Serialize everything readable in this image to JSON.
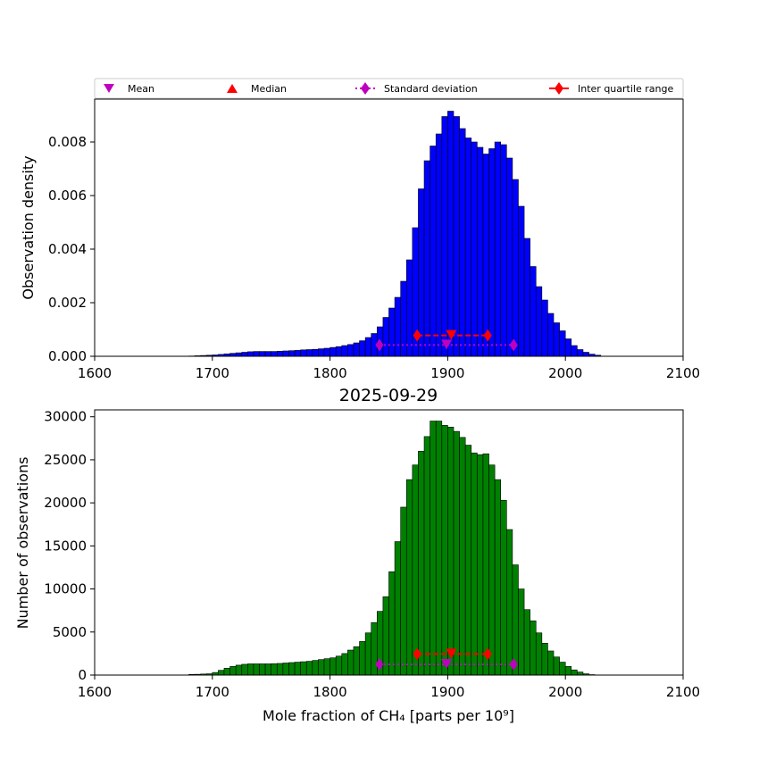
{
  "legend": {
    "mean": "Mean",
    "median": "Median",
    "std": "Standard deviation",
    "iqr": "Inter quartile range"
  },
  "colors": {
    "density_bar": "#0000ff",
    "count_bar": "#008000",
    "mean_marker": "#bf00bf",
    "median_marker": "#ff0000",
    "std_line": "#bf00bf",
    "iqr_line": "#ff0000"
  },
  "chart_data": [
    {
      "type": "bar",
      "ylabel": "Observation density",
      "xlim": [
        1600,
        2100
      ],
      "ylim": [
        0,
        0.0096
      ],
      "xticks": [
        "1600",
        "1700",
        "1800",
        "1900",
        "2000",
        "2100"
      ],
      "yticks": [
        "0.000",
        "0.002",
        "0.004",
        "0.006",
        "0.008"
      ],
      "bin_edges_start": 1680,
      "bin_width": 5,
      "values": [
        1e-05,
        2e-05,
        3e-05,
        4e-05,
        5e-05,
        7e-05,
        9e-05,
        0.00011,
        0.00013,
        0.00015,
        0.00017,
        0.00018,
        0.00018,
        0.00018,
        0.00018,
        0.00019,
        0.0002,
        0.00021,
        0.00022,
        0.00024,
        0.00025,
        0.00026,
        0.00028,
        0.0003,
        0.00033,
        0.00036,
        0.0004,
        0.00044,
        0.0005,
        0.00058,
        0.0007,
        0.00085,
        0.0011,
        0.00145,
        0.0018,
        0.0022,
        0.0028,
        0.0036,
        0.0048,
        0.00625,
        0.0073,
        0.00785,
        0.0083,
        0.00895,
        0.00915,
        0.00895,
        0.0085,
        0.00815,
        0.008,
        0.0078,
        0.00755,
        0.00775,
        0.008,
        0.0079,
        0.0074,
        0.0066,
        0.0056,
        0.0044,
        0.00335,
        0.0026,
        0.0021,
        0.0016,
        0.00125,
        0.00095,
        0.00065,
        0.0004,
        0.00025,
        0.00015,
        8e-05,
        4e-05
      ],
      "stats": {
        "mean": 1899,
        "median": 1903,
        "std_low": 1842,
        "std_high": 1956,
        "q1": 1874,
        "q3": 1934,
        "std_y": 0.00042,
        "iqr_y": 0.00078
      }
    },
    {
      "type": "bar",
      "title": "2025-09-29",
      "xlabel": "Mole fraction of CH₄ [parts per 10⁹]",
      "ylabel": "Number of observations",
      "xlim": [
        1600,
        2100
      ],
      "ylim": [
        0,
        30800
      ],
      "xticks": [
        "1600",
        "1700",
        "1800",
        "1900",
        "2000",
        "2100"
      ],
      "yticks": [
        "0",
        "5000",
        "10000",
        "15000",
        "20000",
        "25000",
        "30000"
      ],
      "bin_edges_start": 1680,
      "bin_width": 5,
      "values": [
        80,
        90,
        120,
        150,
        300,
        550,
        800,
        1000,
        1150,
        1250,
        1300,
        1300,
        1300,
        1300,
        1320,
        1350,
        1400,
        1450,
        1500,
        1550,
        1600,
        1700,
        1800,
        1900,
        2000,
        2200,
        2500,
        2900,
        3300,
        3900,
        4900,
        6100,
        7400,
        9100,
        12000,
        15500,
        19500,
        22700,
        24400,
        26000,
        27700,
        29500,
        29500,
        29000,
        28800,
        28300,
        27600,
        26700,
        25800,
        25600,
        25700,
        24400,
        22700,
        20300,
        16900,
        12800,
        10000,
        7600,
        6300,
        4900,
        3700,
        2800,
        2100,
        1500,
        1000,
        600,
        350,
        150,
        50,
        20
      ],
      "stats": {
        "mean": 1899,
        "median": 1903,
        "std_low": 1842,
        "std_high": 1956,
        "q1": 1874,
        "q3": 1934,
        "std_y": 1250,
        "iqr_y": 2450
      }
    }
  ]
}
